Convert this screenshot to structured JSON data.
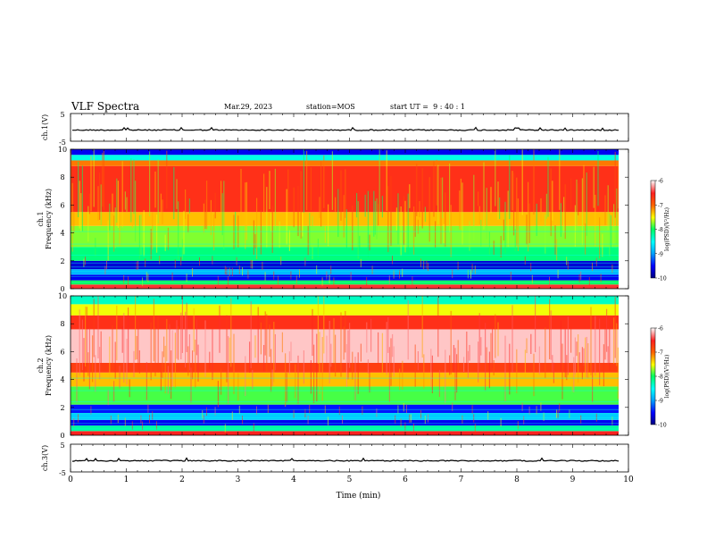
{
  "header": {
    "title": "VLF Spectra",
    "date": "Mar.29, 2023",
    "station": "station=MOS",
    "start": "start UT =  9 : 40 : 1"
  },
  "chart_data": [
    {
      "type": "line",
      "panel": "ch1-waveform",
      "ylabel": "ch.1(V)",
      "ylim": [
        -5,
        5
      ],
      "yticks": [
        "5",
        "-5"
      ],
      "xlim": [
        0,
        10
      ],
      "series": [
        {
          "values_summary": "near-constant trace slightly below 0 V with small spikes"
        }
      ]
    },
    {
      "type": "heatmap",
      "panel": "ch1-spectrogram",
      "ylabel": "ch.1 Frequency (kHz)",
      "ylabel_channel": "ch.1",
      "ylabel_quantity": "Frequency (kHz)",
      "ylim": [
        0,
        10
      ],
      "yticks": [
        "0",
        "2",
        "4",
        "6",
        "8",
        "10"
      ],
      "xlim": [
        0,
        10
      ],
      "colorbar": {
        "label": "log(PSD)(V²/Hz)",
        "range": [
          -10,
          -6
        ],
        "ticks": [
          "-6",
          "-7",
          "-8",
          "-9",
          "-10"
        ]
      },
      "bands": [
        {
          "freq_khz": [
            0,
            0.3
          ],
          "level": -6.8
        },
        {
          "freq_khz": [
            0.3,
            0.6
          ],
          "level": -8.2
        },
        {
          "freq_khz": [
            0.6,
            1.0
          ],
          "level": -9.6
        },
        {
          "freq_khz": [
            1.0,
            1.4
          ],
          "level": -9.0
        },
        {
          "freq_khz": [
            1.4,
            2.0
          ],
          "level": -9.7
        },
        {
          "freq_khz": [
            2.0,
            3.0
          ],
          "level": -8.3
        },
        {
          "freq_khz": [
            3.0,
            4.5
          ],
          "level": -8.0
        },
        {
          "freq_khz": [
            4.5,
            5.5
          ],
          "level": -7.6
        },
        {
          "freq_khz": [
            5.5,
            8.8
          ],
          "level": -7.0
        },
        {
          "freq_khz": [
            8.8,
            9.2
          ],
          "level": -7.4
        },
        {
          "freq_khz": [
            9.2,
            9.6
          ],
          "level": -8.6
        },
        {
          "freq_khz": [
            9.6,
            10.0
          ],
          "level": -9.6
        }
      ]
    },
    {
      "type": "heatmap",
      "panel": "ch2-spectrogram",
      "ylabel": "ch.2 Frequency (kHz)",
      "ylabel_channel": "ch.2",
      "ylabel_quantity": "Frequency (kHz)",
      "ylim": [
        0,
        10
      ],
      "yticks": [
        "0",
        "2",
        "4",
        "6",
        "8",
        "10"
      ],
      "xlim": [
        0,
        10
      ],
      "colorbar": {
        "label": "log(PSD)(V²/Hz)",
        "range": [
          -10,
          -6
        ],
        "ticks": [
          "-6",
          "-7",
          "-8",
          "-9",
          "-10"
        ]
      },
      "bands": [
        {
          "freq_khz": [
            0,
            0.3
          ],
          "level": -6.9
        },
        {
          "freq_khz": [
            0.3,
            0.7
          ],
          "level": -8.4
        },
        {
          "freq_khz": [
            0.7,
            1.1
          ],
          "level": -9.6
        },
        {
          "freq_khz": [
            1.1,
            1.6
          ],
          "level": -8.9
        },
        {
          "freq_khz": [
            1.6,
            2.2
          ],
          "level": -9.5
        },
        {
          "freq_khz": [
            2.2,
            3.5
          ],
          "level": -8.1
        },
        {
          "freq_khz": [
            3.5,
            4.5
          ],
          "level": -7.6
        },
        {
          "freq_khz": [
            4.5,
            5.2
          ],
          "level": -7.1
        },
        {
          "freq_khz": [
            5.2,
            7.6
          ],
          "level": -6.2
        },
        {
          "freq_khz": [
            7.6,
            8.6
          ],
          "level": -7.0
        },
        {
          "freq_khz": [
            8.6,
            9.4
          ],
          "level": -7.8
        },
        {
          "freq_khz": [
            9.4,
            10.0
          ],
          "level": -8.5
        }
      ]
    },
    {
      "type": "line",
      "panel": "ch3-waveform",
      "ylabel": "ch.3(V)",
      "ylim": [
        -5,
        5
      ],
      "yticks": [
        "5",
        "-5"
      ],
      "xlim": [
        0,
        10
      ],
      "xlabel": "Time (min)",
      "xticks": [
        "0",
        "1",
        "2",
        "3",
        "4",
        "5",
        "6",
        "7",
        "8",
        "9",
        "10"
      ],
      "series": [
        {
          "values_summary": "near-constant trace slightly below 0 V"
        }
      ]
    }
  ],
  "colors": {
    "scale": [
      "#000080",
      "#0000ff",
      "#00a0ff",
      "#00ffff",
      "#00ff60",
      "#ffff00",
      "#ff6000",
      "#ff2020",
      "#ff8080",
      "#ffffff"
    ]
  }
}
